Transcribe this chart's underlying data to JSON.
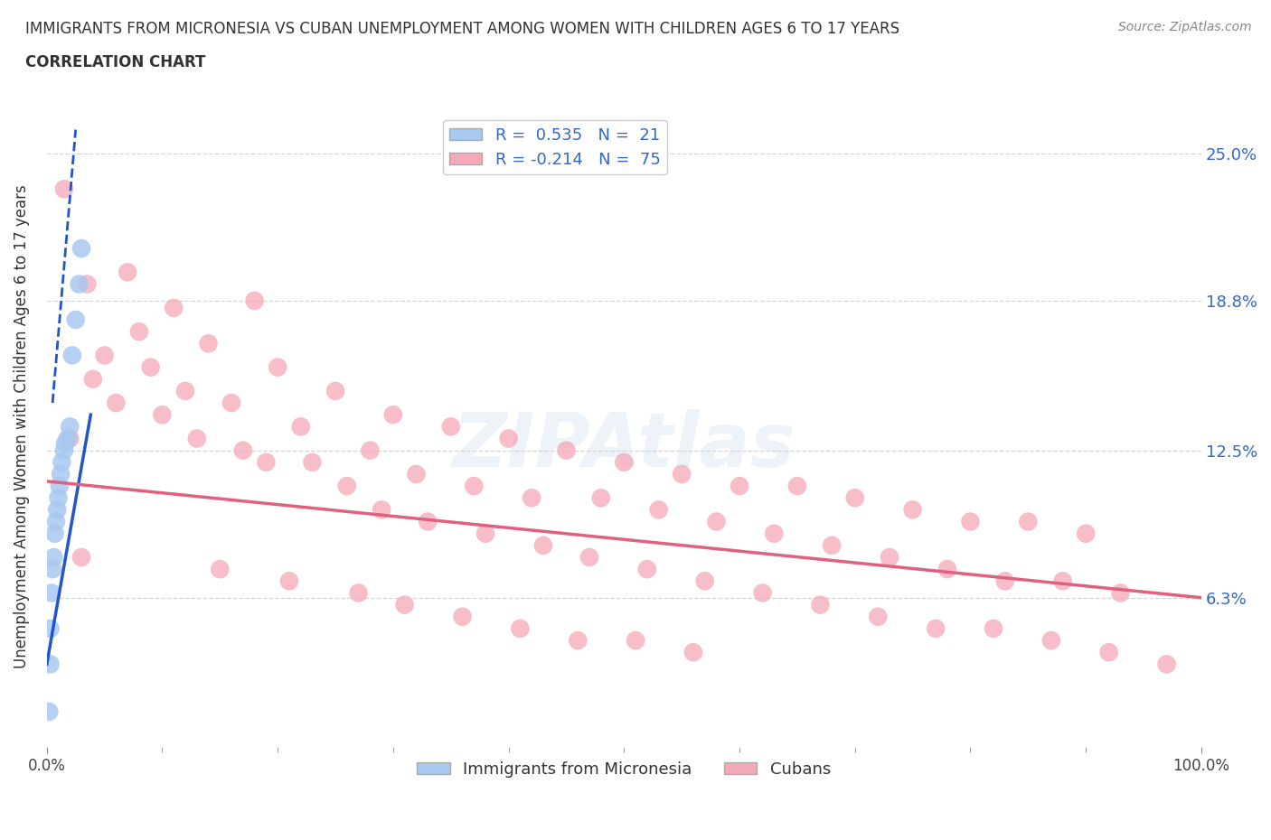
{
  "title": "IMMIGRANTS FROM MICRONESIA VS CUBAN UNEMPLOYMENT AMONG WOMEN WITH CHILDREN AGES 6 TO 17 YEARS",
  "subtitle": "CORRELATION CHART",
  "source": "Source: ZipAtlas.com",
  "ylabel": "Unemployment Among Women with Children Ages 6 to 17 years",
  "xlim": [
    0.0,
    100.0
  ],
  "ylim": [
    0.0,
    27.0
  ],
  "yticks": [
    6.3,
    12.5,
    18.8,
    25.0
  ],
  "xtick_labels": [
    "0.0%",
    "100.0%"
  ],
  "xtick_vals": [
    0.0,
    100.0
  ],
  "grid_color": "#d0d0d0",
  "background_color": "#ffffff",
  "micronesia_color": "#a8c8f0",
  "cuban_color": "#f5a8b8",
  "micronesia_line_color": "#2255cc",
  "cuban_line_color": "#e06080",
  "R_micronesia": 0.535,
  "N_micronesia": 21,
  "R_cuban": -0.214,
  "N_cuban": 75,
  "micronesia_label": "Immigrants from Micronesia",
  "cuban_label": "Cubans",
  "micronesia_line": [
    [
      0.0,
      3.5
    ],
    [
      3.8,
      14.0
    ]
  ],
  "micronesia_line_dashed": [
    [
      0.5,
      14.5
    ],
    [
      2.5,
      26.0
    ]
  ],
  "cuban_line": [
    [
      0.0,
      11.2
    ],
    [
      100.0,
      6.3
    ]
  ],
  "micronesia_points": [
    [
      0.3,
      3.5
    ],
    [
      0.3,
      5.0
    ],
    [
      0.4,
      6.5
    ],
    [
      0.5,
      7.5
    ],
    [
      0.6,
      8.0
    ],
    [
      0.7,
      9.0
    ],
    [
      0.8,
      9.5
    ],
    [
      0.9,
      10.0
    ],
    [
      1.0,
      10.5
    ],
    [
      1.1,
      11.0
    ],
    [
      1.2,
      11.5
    ],
    [
      1.3,
      12.0
    ],
    [
      1.5,
      12.5
    ],
    [
      1.6,
      12.8
    ],
    [
      1.8,
      13.0
    ],
    [
      2.0,
      13.5
    ],
    [
      2.2,
      16.5
    ],
    [
      2.5,
      18.0
    ],
    [
      2.8,
      19.5
    ],
    [
      3.0,
      21.0
    ],
    [
      0.2,
      1.5
    ]
  ],
  "cuban_points": [
    [
      1.5,
      23.5
    ],
    [
      3.5,
      19.5
    ],
    [
      7.0,
      20.0
    ],
    [
      11.0,
      18.5
    ],
    [
      18.0,
      18.8
    ],
    [
      8.0,
      17.5
    ],
    [
      14.0,
      17.0
    ],
    [
      5.0,
      16.5
    ],
    [
      9.0,
      16.0
    ],
    [
      20.0,
      16.0
    ],
    [
      4.0,
      15.5
    ],
    [
      12.0,
      15.0
    ],
    [
      25.0,
      15.0
    ],
    [
      6.0,
      14.5
    ],
    [
      16.0,
      14.5
    ],
    [
      10.0,
      14.0
    ],
    [
      30.0,
      14.0
    ],
    [
      22.0,
      13.5
    ],
    [
      35.0,
      13.5
    ],
    [
      2.0,
      13.0
    ],
    [
      13.0,
      13.0
    ],
    [
      40.0,
      13.0
    ],
    [
      17.0,
      12.5
    ],
    [
      28.0,
      12.5
    ],
    [
      45.0,
      12.5
    ],
    [
      50.0,
      12.0
    ],
    [
      19.0,
      12.0
    ],
    [
      23.0,
      12.0
    ],
    [
      55.0,
      11.5
    ],
    [
      32.0,
      11.5
    ],
    [
      60.0,
      11.0
    ],
    [
      26.0,
      11.0
    ],
    [
      37.0,
      11.0
    ],
    [
      65.0,
      11.0
    ],
    [
      42.0,
      10.5
    ],
    [
      70.0,
      10.5
    ],
    [
      48.0,
      10.5
    ],
    [
      29.0,
      10.0
    ],
    [
      53.0,
      10.0
    ],
    [
      75.0,
      10.0
    ],
    [
      33.0,
      9.5
    ],
    [
      58.0,
      9.5
    ],
    [
      80.0,
      9.5
    ],
    [
      38.0,
      9.0
    ],
    [
      63.0,
      9.0
    ],
    [
      85.0,
      9.5
    ],
    [
      43.0,
      8.5
    ],
    [
      68.0,
      8.5
    ],
    [
      90.0,
      9.0
    ],
    [
      47.0,
      8.0
    ],
    [
      73.0,
      8.0
    ],
    [
      3.0,
      8.0
    ],
    [
      52.0,
      7.5
    ],
    [
      78.0,
      7.5
    ],
    [
      15.0,
      7.5
    ],
    [
      57.0,
      7.0
    ],
    [
      83.0,
      7.0
    ],
    [
      21.0,
      7.0
    ],
    [
      62.0,
      6.5
    ],
    [
      88.0,
      7.0
    ],
    [
      27.0,
      6.5
    ],
    [
      67.0,
      6.0
    ],
    [
      93.0,
      6.5
    ],
    [
      31.0,
      6.0
    ],
    [
      72.0,
      5.5
    ],
    [
      36.0,
      5.5
    ],
    [
      77.0,
      5.0
    ],
    [
      41.0,
      5.0
    ],
    [
      82.0,
      5.0
    ],
    [
      46.0,
      4.5
    ],
    [
      87.0,
      4.5
    ],
    [
      51.0,
      4.5
    ],
    [
      92.0,
      4.0
    ],
    [
      56.0,
      4.0
    ],
    [
      97.0,
      3.5
    ]
  ]
}
